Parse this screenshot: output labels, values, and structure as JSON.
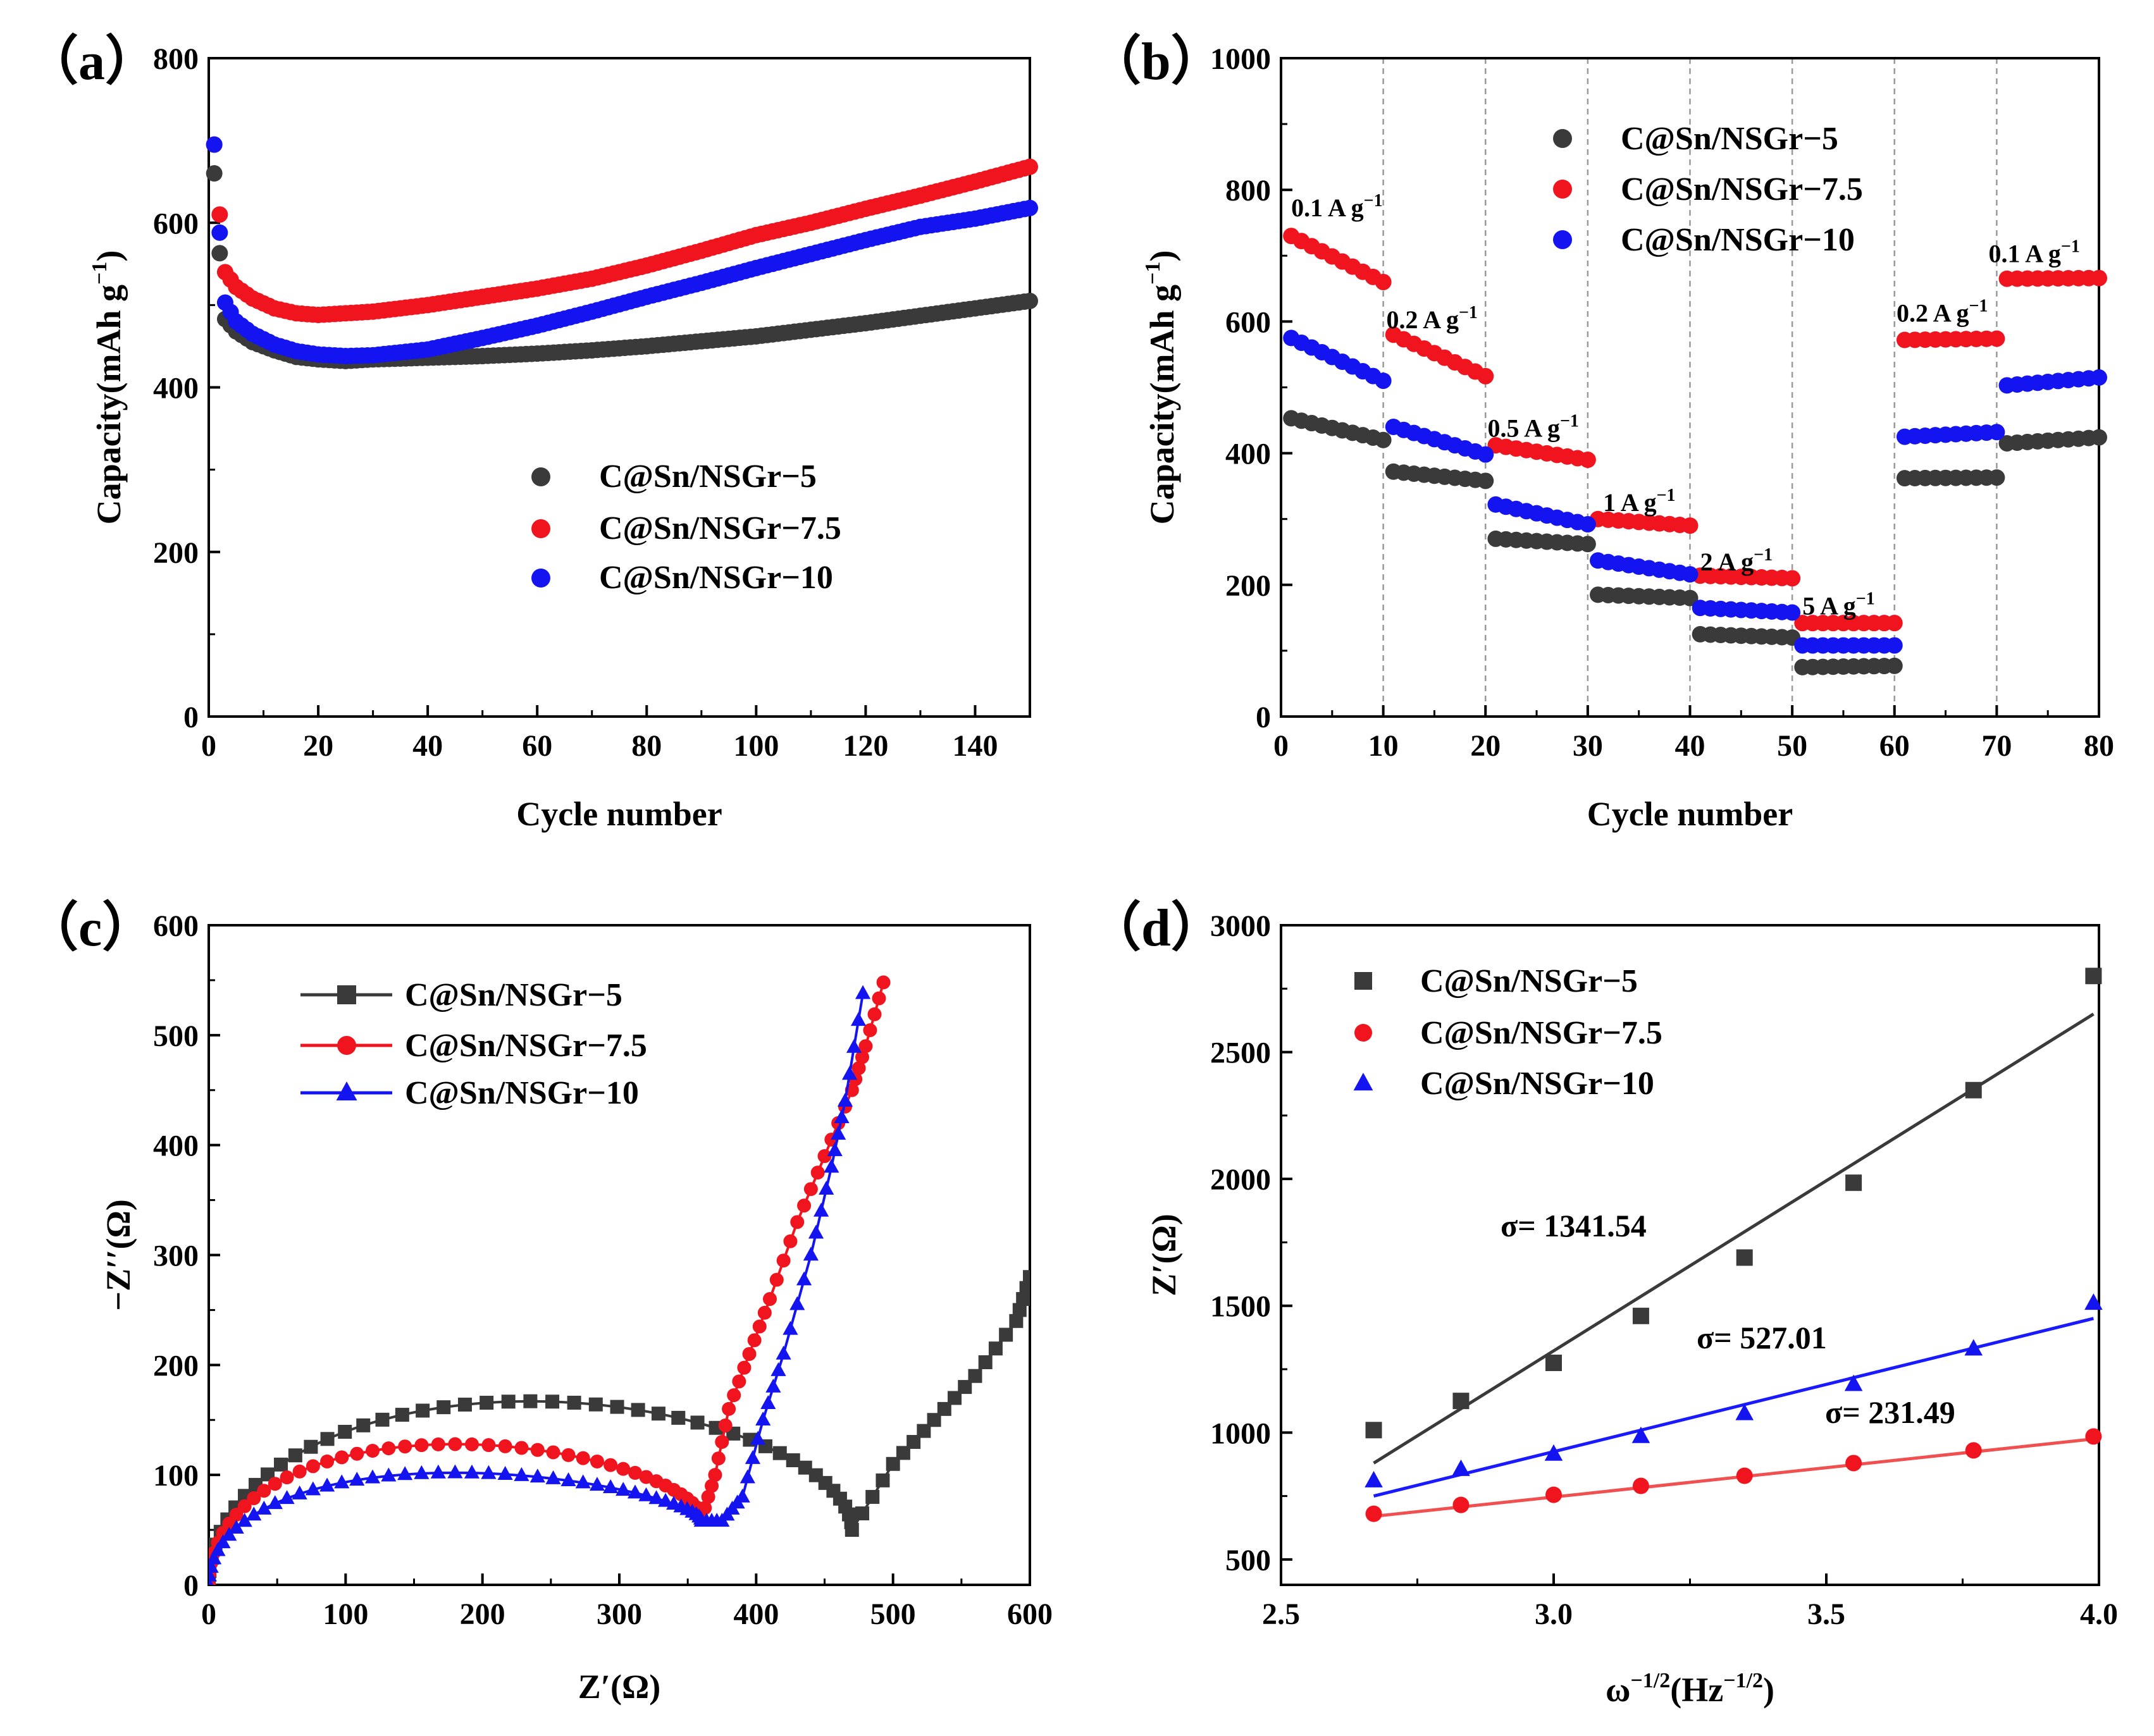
{
  "colors": {
    "black": "#3a3a3a",
    "red": "#f0141e",
    "blue": "#1414f0",
    "red_line": "#f05050",
    "blue_line": "#1a1aff"
  },
  "chart_data": [
    {
      "type": "scatter",
      "panel_label": "（a）",
      "xlabel": "Cycle number",
      "ylabel": "Capacity(mAh g",
      "ylabel_sup": "−1",
      "ylabel_close": ")",
      "xlim": [
        0,
        150
      ],
      "ylim": [
        0,
        800
      ],
      "xticks": [
        "0",
        "20",
        "40",
        "60",
        "80",
        "100",
        "120",
        "140"
      ],
      "yticks": [
        "0",
        "200",
        "400",
        "600",
        "800"
      ],
      "legend": [
        "C@Sn/NSGr−5",
        "C@Sn/NSGr−7.5",
        "C@Sn/NSGr−10"
      ],
      "series": [
        {
          "name": "C@Sn/NSGr−5",
          "color": "black",
          "points": [
            [
              1,
              660
            ],
            [
              2,
              563
            ],
            [
              3,
              483
            ],
            [
              5,
              468
            ],
            [
              8,
              455
            ],
            [
              12,
              445
            ],
            [
              16,
              437
            ],
            [
              20,
              434
            ],
            [
              25,
              432
            ],
            [
              30,
              434
            ],
            [
              40,
              436
            ],
            [
              50,
              438
            ],
            [
              60,
              441
            ],
            [
              70,
              445
            ],
            [
              80,
              450
            ],
            [
              90,
              456
            ],
            [
              100,
              462
            ],
            [
              110,
              470
            ],
            [
              120,
              478
            ],
            [
              130,
              487
            ],
            [
              140,
              496
            ],
            [
              150,
              505
            ]
          ]
        },
        {
          "name": "C@Sn/NSGr−7.5",
          "color": "red",
          "points": [
            [
              1,
              695
            ],
            [
              2,
              610
            ],
            [
              3,
              540
            ],
            [
              5,
              522
            ],
            [
              8,
              508
            ],
            [
              12,
              496
            ],
            [
              16,
              490
            ],
            [
              20,
              488
            ],
            [
              25,
              490
            ],
            [
              30,
              492
            ],
            [
              40,
              500
            ],
            [
              50,
              510
            ],
            [
              60,
              520
            ],
            [
              70,
              532
            ],
            [
              80,
              548
            ],
            [
              90,
              566
            ],
            [
              100,
              585
            ],
            [
              110,
              600
            ],
            [
              120,
              617
            ],
            [
              130,
              633
            ],
            [
              140,
              650
            ],
            [
              150,
              668
            ]
          ]
        },
        {
          "name": "C@Sn/NSGr−10",
          "color": "blue",
          "points": [
            [
              1,
              695
            ],
            [
              2,
              588
            ],
            [
              3,
              503
            ],
            [
              5,
              480
            ],
            [
              8,
              465
            ],
            [
              12,
              452
            ],
            [
              16,
              444
            ],
            [
              20,
              440
            ],
            [
              25,
              438
            ],
            [
              30,
              439
            ],
            [
              40,
              446
            ],
            [
              50,
              460
            ],
            [
              60,
              475
            ],
            [
              70,
              492
            ],
            [
              80,
              510
            ],
            [
              90,
              527
            ],
            [
              100,
              545
            ],
            [
              110,
              562
            ],
            [
              120,
              579
            ],
            [
              130,
              595
            ],
            [
              140,
              605
            ],
            [
              150,
              618
            ]
          ]
        }
      ]
    },
    {
      "type": "scatter",
      "panel_label": "（b）",
      "xlabel": "Cycle number",
      "ylabel": "Capacity(mAh g",
      "ylabel_sup": "−1",
      "ylabel_close": ")",
      "xlim": [
        0,
        80
      ],
      "ylim": [
        0,
        1000
      ],
      "xticks": [
        "0",
        "10",
        "20",
        "30",
        "40",
        "50",
        "60",
        "70",
        "80"
      ],
      "yticks": [
        "0",
        "200",
        "400",
        "600",
        "800",
        "1000"
      ],
      "vlines": [
        10,
        20,
        30,
        40,
        50,
        60,
        70
      ],
      "legend": [
        "C@Sn/NSGr−5",
        "C@Sn/NSGr−7.5",
        "C@Sn/NSGr−10"
      ],
      "rate_labels": [
        {
          "text": "0.1 A g",
          "sup": "−1",
          "x": 1,
          "y": 760
        },
        {
          "text": "0.2 A g",
          "sup": "−1",
          "x": 10.3,
          "y": 590
        },
        {
          "text": "0.5 A g",
          "sup": "−1",
          "x": 20.2,
          "y": 425
        },
        {
          "text": "1 A g",
          "sup": "−1",
          "x": 31.5,
          "y": 312
        },
        {
          "text": "2 A g",
          "sup": "−1",
          "x": 41,
          "y": 222
        },
        {
          "text": "5 A g",
          "sup": "−1",
          "x": 51,
          "y": 155
        },
        {
          "text": "0.2 A g",
          "sup": "−1",
          "x": 60.2,
          "y": 600
        },
        {
          "text": "0.1 A g",
          "sup": "−1",
          "x": 69.2,
          "y": 690
        }
      ],
      "segments": [
        {
          "name": "C@Sn/NSGr−5",
          "color": "black",
          "ranges": [
            [
              1,
              10,
              453,
              420
            ],
            [
              11,
              20,
              372,
              358
            ],
            [
              21,
              30,
              270,
              262
            ],
            [
              31,
              40,
              185,
              180
            ],
            [
              41,
              50,
              125,
              120
            ],
            [
              51,
              60,
              75,
              77
            ],
            [
              61,
              70,
              362,
              363
            ],
            [
              71,
              80,
              415,
              424
            ]
          ]
        },
        {
          "name": "C@Sn/NSGr−7.5",
          "color": "red",
          "ranges": [
            [
              1,
              10,
              730,
              660
            ],
            [
              11,
              20,
              580,
              517
            ],
            [
              21,
              30,
              412,
              390
            ],
            [
              31,
              40,
              300,
              290
            ],
            [
              41,
              50,
              214,
              210
            ],
            [
              51,
              60,
              142,
              142
            ],
            [
              61,
              70,
              572,
              574
            ],
            [
              71,
              80,
              665,
              666
            ]
          ]
        },
        {
          "name": "C@Sn/NSGr−10",
          "color": "blue",
          "ranges": [
            [
              1,
              10,
              575,
              510
            ],
            [
              11,
              20,
              440,
              398
            ],
            [
              21,
              30,
              322,
              292
            ],
            [
              31,
              40,
              237,
              216
            ],
            [
              41,
              50,
              165,
              158
            ],
            [
              51,
              60,
              108,
              108
            ],
            [
              61,
              70,
              425,
              432
            ],
            [
              71,
              80,
              503,
              515
            ]
          ]
        }
      ]
    },
    {
      "type": "line",
      "panel_label": "（c）",
      "xlabel": "Z′(Ω)",
      "ylabel": "−Z′′(Ω)",
      "xlim": [
        0,
        600
      ],
      "ylim": [
        0,
        600
      ],
      "xticks": [
        "0",
        "100",
        "200",
        "300",
        "400",
        "500",
        "600"
      ],
      "yticks": [
        "0",
        "100",
        "200",
        "300",
        "400",
        "500",
        "600"
      ],
      "legend": [
        "C@Sn/NSGr−5",
        "C@Sn/NSGr−7.5",
        "C@Sn/NSGr−10"
      ],
      "series": [
        {
          "name": "C@Sn/NSGr−5",
          "color": "black",
          "marker": "square",
          "arc": {
            "x0": 0,
            "x1": 470,
            "peak": 167,
            "tail": [
              [
                470,
                50
              ],
              [
                500,
                110
              ],
              [
                530,
                150
              ],
              [
                560,
                190
              ],
              [
                590,
                240
              ],
              [
                600,
                280
              ]
            ]
          }
        },
        {
          "name": "C@Sn/NSGr−7.5",
          "color": "red",
          "marker": "circle",
          "arc": {
            "x0": 0,
            "x1": 360,
            "peak": 128,
            "tail": [
              [
                360,
                60
              ],
              [
                370,
                100
              ],
              [
                380,
                160
              ],
              [
                395,
                210
              ],
              [
                410,
                260
              ],
              [
                430,
                330
              ],
              [
                450,
                390
              ],
              [
                470,
                450
              ],
              [
                480,
                490
              ],
              [
                493,
                548
              ]
            ]
          }
        },
        {
          "name": "C@Sn/NSGr−10",
          "color": "blue",
          "marker": "triangle",
          "arc": {
            "x0": 0,
            "x1": 360,
            "peak": 102,
            "tail": [
              [
                360,
                58
              ],
              [
                375,
                58
              ],
              [
                390,
                80
              ],
              [
                405,
                150
              ],
              [
                420,
                210
              ],
              [
                440,
                300
              ],
              [
                455,
                380
              ],
              [
                465,
                440
              ],
              [
                478,
                538
              ]
            ]
          }
        }
      ]
    },
    {
      "type": "scatter",
      "panel_label": "（d）",
      "xlabel": "ω",
      "xlabel_sup": "−1/2",
      "xlabel_mid": "(Hz",
      "xlabel_sup2": "−1/2",
      "xlabel_close": ")",
      "ylabel": "Z′(Ω)",
      "xlim": [
        2.5,
        4.0
      ],
      "ylim": [
        400,
        3000
      ],
      "xticks": [
        "2.5",
        "3.0",
        "3.5",
        "4.0"
      ],
      "yticks": [
        "500",
        "1000",
        "1500",
        "2000",
        "2500",
        "3000"
      ],
      "legend": [
        "C@Sn/NSGr−5",
        "C@Sn/NSGr−7.5",
        "C@Sn/NSGr−10"
      ],
      "x": [
        2.67,
        2.83,
        3.0,
        3.16,
        3.35,
        3.55,
        3.77,
        3.99
      ],
      "series": [
        {
          "name": "C@Sn/NSGr−5",
          "color": "black",
          "marker": "square",
          "values": [
            1010,
            1125,
            1275,
            1460,
            1690,
            1985,
            2350,
            2800
          ],
          "fit": [
            [
              2.67,
              880
            ],
            [
              3.99,
              2650
            ]
          ],
          "sigma": "σ= 1341.54"
        },
        {
          "name": "C@Sn/NSGr−7.5",
          "color": "red",
          "marker": "circle",
          "values": [
            680,
            715,
            755,
            790,
            830,
            880,
            930,
            985
          ],
          "fit": [
            [
              2.67,
              670
            ],
            [
              3.99,
              975
            ]
          ],
          "sigma": "σ= 231.49"
        },
        {
          "name": "C@Sn/NSGr−10",
          "color": "blue",
          "marker": "triangle",
          "values": [
            810,
            855,
            915,
            985,
            1075,
            1190,
            1330,
            1510
          ],
          "fit": [
            [
              2.67,
              750
            ],
            [
              3.99,
              1450
            ]
          ],
          "sigma": "σ= 527.01"
        }
      ]
    }
  ]
}
